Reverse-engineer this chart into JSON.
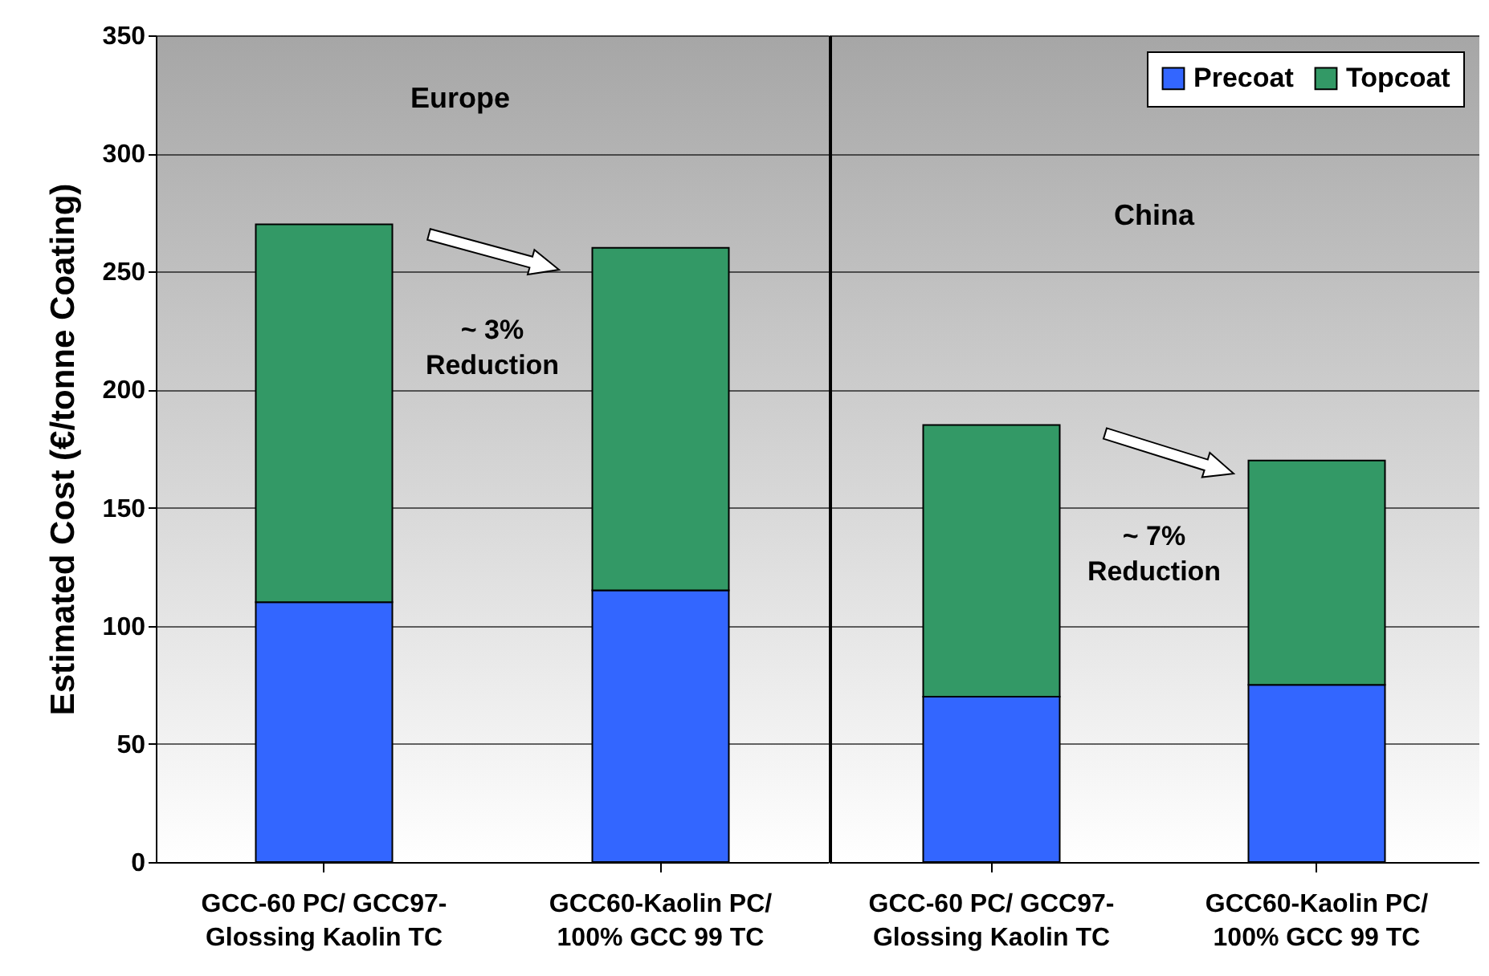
{
  "chart_data": [
    {
      "type": "bar",
      "title": "Europe",
      "ylabel": "Estimated Cost (€/tonne Coating)",
      "categories": [
        "GCC-60 PC/ GCC97-\nGlossing Kaolin TC",
        "GCC60-Kaolin PC/\n100% GCC 99 TC"
      ],
      "stacked": true,
      "series": [
        {
          "color": "#3366ff",
          "values": [
            110,
            115
          ]
        },
        {
          "color": "#339966",
          "values": [
            160,
            145
          ]
        }
      ],
      "ylim": [
        0,
        350
      ],
      "yticks": [
        0,
        50,
        100,
        150,
        200,
        250,
        300,
        350
      ],
      "grid": "y",
      "legend": false,
      "annotations": [
        "~ 3%\nReduction"
      ]
    },
    {
      "type": "bar",
      "title": "China",
      "categories": [
        "GCC-60 PC/ GCC97-\nGlossing Kaolin TC",
        "GCC60-Kaolin PC/\n100% GCC 99 TC"
      ],
      "stacked": true,
      "series": [
        {
          "name": "Precoat",
          "color": "#3366ff",
          "values": [
            70,
            75
          ]
        },
        {
          "name": "Topcoat",
          "color": "#339966",
          "values": [
            115,
            95
          ]
        }
      ],
      "ylim": [
        0,
        350
      ],
      "yticks": [
        0,
        50,
        100,
        150,
        200,
        250,
        300,
        350
      ],
      "grid": "y",
      "legend": "top right",
      "tick_labels": "x",
      "annotations": [
        "~ 7%\nReduction"
      ]
    }
  ]
}
